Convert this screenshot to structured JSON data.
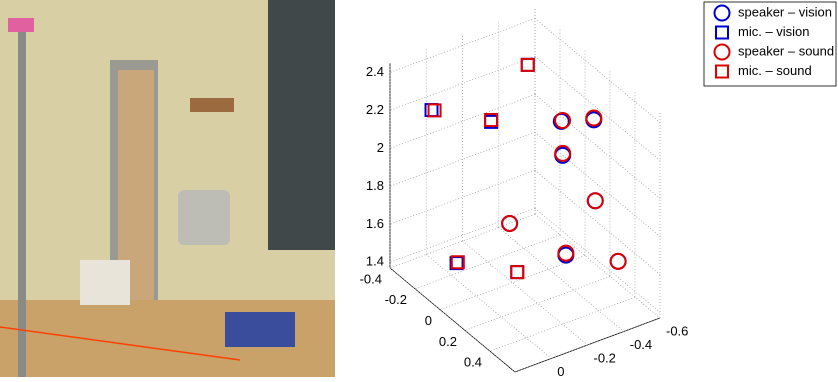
{
  "chart_data": {
    "type": "scatter3d",
    "xlim": [
      -0.6,
      0.2
    ],
    "ylim": [
      -0.4,
      0.6
    ],
    "zlim": [
      1.37,
      2.45
    ],
    "xticks": [
      -0.6,
      -0.4,
      -0.2,
      0,
      0.2
    ],
    "yticks": [
      -0.4,
      -0.2,
      0,
      0.2,
      0.4,
      0.6
    ],
    "zticks": [
      1.4,
      1.6,
      1.8,
      2,
      2.2,
      2.4
    ],
    "grid": true,
    "legend": "top-right",
    "series": [
      {
        "name": "speaker – vision",
        "color": "#0000cc",
        "marker": "circle",
        "x": [
          -0.49,
          -0.49,
          -0.47,
          -0.56,
          -0.26,
          -0.46,
          -0.5
        ],
        "y": [
          -0.03,
          0.23,
          0.01,
          0.14,
          -0.11,
          0.05,
          0.41
        ],
        "z": [
          2.1,
          2.25,
          1.95,
          1.75,
          1.6,
          1.45,
          1.6
        ]
      },
      {
        "name": "mic. – vision",
        "color": "#0000cc",
        "marker": "square",
        "x": [
          -0.36,
          0.04,
          -0.22,
          -0.05,
          -0.24
        ],
        "y": [
          -0.11,
          -0.3,
          -0.2,
          -0.23,
          -0.02
        ],
        "z": [
          2.4,
          2.2,
          2.1,
          1.4,
          1.4
        ]
      },
      {
        "name": "speaker – sound",
        "color": "#dd0000",
        "marker": "circle",
        "x": [
          -0.49,
          -0.49,
          -0.47,
          -0.56,
          -0.26,
          -0.46,
          -0.5
        ],
        "y": [
          -0.02,
          0.23,
          0.01,
          0.14,
          -0.11,
          0.05,
          0.41
        ],
        "z": [
          2.11,
          2.26,
          1.96,
          1.75,
          1.6,
          1.46,
          1.6
        ]
      },
      {
        "name": "mic. – sound",
        "color": "#dd0000",
        "marker": "square",
        "x": [
          -0.36,
          0.03,
          -0.22,
          -0.05,
          -0.24
        ],
        "y": [
          -0.11,
          -0.29,
          -0.2,
          -0.22,
          -0.02
        ],
        "z": [
          2.4,
          2.2,
          2.11,
          1.41,
          1.4
        ]
      }
    ]
  }
}
